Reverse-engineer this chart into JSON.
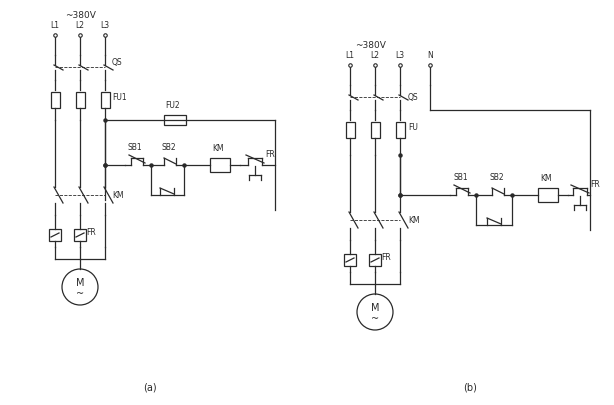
{
  "title_a": "(a)",
  "title_b": "(b)",
  "bg_color": "#ffffff",
  "line_color": "#2a2a2a",
  "fig_width": 6.14,
  "fig_height": 4.05,
  "voltage_label_a": "~380V",
  "voltage_label_b": "~380V",
  "phase_labels_a": [
    "L1",
    "L2",
    "L3"
  ],
  "phase_labels_b": [
    "L1",
    "L2",
    "L3",
    "N"
  ]
}
